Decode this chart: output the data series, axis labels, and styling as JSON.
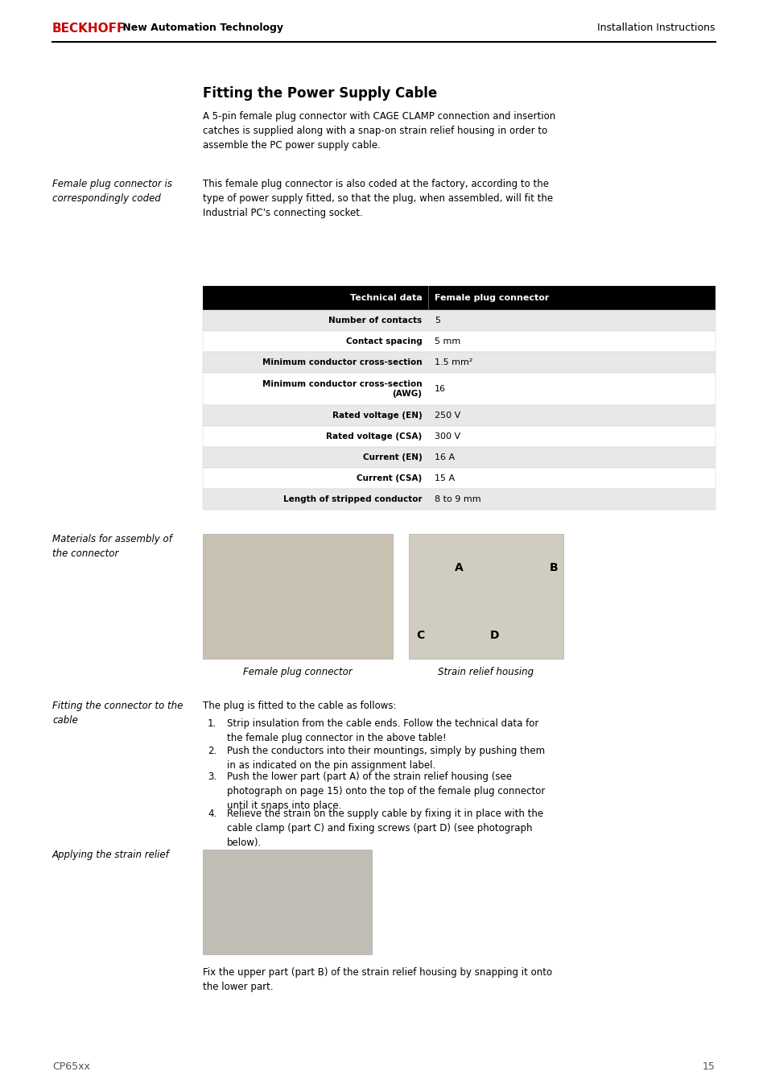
{
  "page_width": 9.54,
  "page_height": 13.51,
  "bg_color": "#ffffff",
  "header": {
    "beckhoff_text": "BECKHOFF",
    "beckhoff_color": "#cc0000",
    "subtitle_text": " New Automation Technology",
    "right_text": "Installation Instructions",
    "line_color": "#000000"
  },
  "footer": {
    "left_text": "CP65xx",
    "right_text": "15"
  },
  "title": "Fitting the Power Supply Cable",
  "intro_text": "A 5-pin female plug connector with CAGE CLAMP connection and insertion\ncatches is supplied along with a snap-on strain relief housing in order to\nassemble the PC power supply cable.",
  "side_label_1": "Female plug connector is\ncorrespondingly coded",
  "body_text_1": "This female plug connector is also coded at the factory, according to the\ntype of power supply fitted, so that the plug, when assembled, will fit the\nIndustrial PC's connecting socket.",
  "table": {
    "header_bg": "#000000",
    "header_text_color": "#ffffff",
    "row_bg_odd": "#e8e8e8",
    "row_bg_even": "#ffffff",
    "col1_header": "Technical data",
    "col2_header": "Female plug connector",
    "rows": [
      [
        "Number of contacts",
        "5"
      ],
      [
        "Contact spacing",
        "5 mm"
      ],
      [
        "Minimum conductor cross-section",
        "1.5 mm²"
      ],
      [
        "Minimum conductor cross-section\n(AWG)",
        "16"
      ],
      [
        "Rated voltage (EN)",
        "250 V"
      ],
      [
        "Rated voltage (CSA)",
        "300 V"
      ],
      [
        "Current (EN)",
        "16 A"
      ],
      [
        "Current (CSA)",
        "15 A"
      ],
      [
        "Length of stripped conductor",
        "8 to 9 mm"
      ]
    ]
  },
  "side_label_2": "Materials for assembly of\nthe connector",
  "caption_left": "Female plug connector",
  "caption_right": "Strain relief housing",
  "side_label_3": "Fitting the connector to the\ncable",
  "fitting_title": "The plug is fitted to the cable as follows:",
  "fitting_steps": [
    "Strip insulation from the cable ends. Follow the technical data for\nthe female plug connector in the above table!",
    "Push the conductors into their mountings, simply by pushing them\nin as indicated on the pin assignment label.",
    "Push the lower part (part A) of the strain relief housing (see\nphotograph on page 15) onto the top of the female plug connector\nuntil it snaps into place.",
    "Relieve the strain on the supply cable by fixing it in place with the\ncable clamp (part C) and fixing screws (part D) (see photograph\nbelow)."
  ],
  "side_label_4": "Applying the strain relief",
  "final_text": "Fix the upper part (part B) of the strain relief housing by snapping it onto\nthe lower part.",
  "text_color": "#000000"
}
